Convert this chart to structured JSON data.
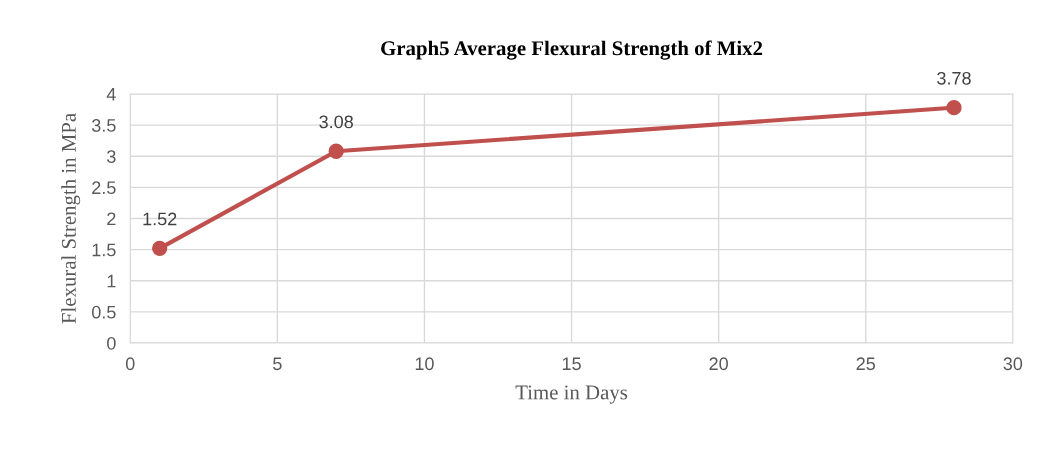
{
  "chart_data": {
    "type": "line",
    "title": "Graph5 Average Flexural Strength of Mix2",
    "xlabel": "Time in Days",
    "ylabel": "Flexural Strength in MPa",
    "x": [
      1,
      7,
      28
    ],
    "series": [
      {
        "color": "#c0504d",
        "values": [
          1.52,
          3.08,
          3.78
        ]
      }
    ],
    "xlim": [
      0,
      30
    ],
    "xticks": [
      0,
      5,
      10,
      15,
      20,
      25,
      30
    ],
    "ylim": [
      0,
      4
    ],
    "yticks": [
      0,
      0.5,
      1,
      1.5,
      2,
      2.5,
      3,
      3.5,
      4
    ],
    "grid": true,
    "marker": "circle",
    "line_style": "solid",
    "data_labels": true
  }
}
